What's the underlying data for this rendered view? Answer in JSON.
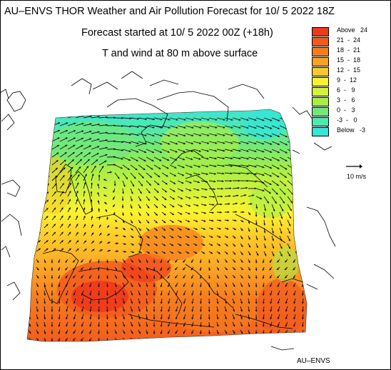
{
  "title": "AU–ENVS THOR Weather and Air Pollution Forecast for 10/ 5 2022  18Z",
  "subtitle_start": "Forecast started at 10/ 5 2022  00Z (+18h)",
  "subtitle_field": "T and wind at 80 m above surface",
  "legend": [
    {
      "label": "Above   24",
      "color": "#ee3a1c"
    },
    {
      "label": "21  -  24",
      "color": "#f25a1e"
    },
    {
      "label": "18  -  21",
      "color": "#f57d20"
    },
    {
      "label": "15  -  18",
      "color": "#f9a326"
    },
    {
      "label": "12  -  15",
      "color": "#fcc82a"
    },
    {
      "label": "9  -  12",
      "color": "#fbf22f"
    },
    {
      "label": "6  -   9",
      "color": "#d2f23c"
    },
    {
      "label": "3  -   6",
      "color": "#a6ee48"
    },
    {
      "label": "0  -   3",
      "color": "#72e87a"
    },
    {
      "label": "-3  -   0",
      "color": "#4ee8b2"
    },
    {
      "label": "Below   -3",
      "color": "#36e6d6"
    }
  ],
  "wind_scale_label": "10 m/s",
  "footer": "AU–ENVS"
}
